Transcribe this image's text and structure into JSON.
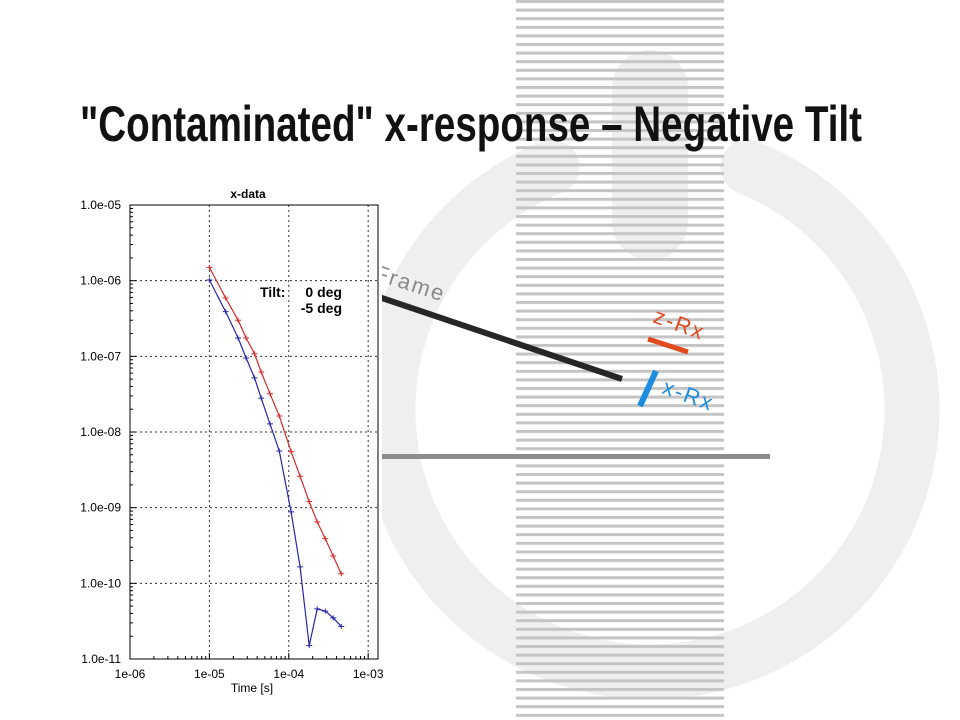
{
  "slide": {
    "title": "\"Contaminated\" x-response – Negative Tilt",
    "background_color": "#ffffff"
  },
  "watermark": {
    "color": "#efefef"
  },
  "stripes": {
    "color": "#c4c4c4"
  },
  "diagram": {
    "frame_label": "Frame",
    "z_receiver_label": "z-Rx",
    "x_receiver_label": "x-Rx",
    "colors": {
      "ground": "#8c8c8c",
      "frame": "#262626",
      "frame_label": "#8a8a8a",
      "z_receiver": "#e2491d",
      "x_receiver": "#1c8ce0"
    }
  },
  "chart_data": {
    "type": "line",
    "title": "x-data",
    "xlabel": "Time [s]",
    "xscale": "log",
    "yscale": "log",
    "xlim": [
      1e-06,
      0.00133
    ],
    "ylim": [
      1e-11,
      1e-05
    ],
    "xticks": [
      1e-06,
      1e-05,
      0.0001,
      0.001
    ],
    "xtick_labels": [
      "1e-06",
      "1e-05",
      "1e-04",
      "1e-03"
    ],
    "yticks": [
      1e-05,
      1e-06,
      1e-07,
      1e-08,
      1e-09,
      1e-10,
      1e-11
    ],
    "ytick_labels": [
      "1.0e-05",
      "1.0e-06",
      "1.0e-07",
      "1.0e-08",
      "1.0e-09",
      "1.0e-10",
      "1.0e-11"
    ],
    "grid": true,
    "legend": {
      "title": "Tilt:",
      "position": "top-right"
    },
    "x": [
      1e-05,
      1.6e-05,
      2.3e-05,
      2.9e-05,
      3.7e-05,
      4.5e-05,
      5.8e-05,
      7.6e-05,
      0.000107,
      0.000139,
      0.000181,
      0.000228,
      0.000288,
      0.000363,
      0.000458
    ],
    "series": [
      {
        "name": "0 deg",
        "color": "#d42a2a",
        "values": [
          1.5e-06,
          5.9e-07,
          3e-07,
          1.75e-07,
          1.08e-07,
          6.2e-08,
          3.2e-08,
          1.63e-08,
          5.5e-09,
          2.6e-09,
          1.2e-09,
          6.5e-10,
          3.9e-10,
          2.3e-10,
          1.34e-10
        ]
      },
      {
        "name": "-5 deg",
        "color": "#2626aa",
        "values": [
          1.02e-06,
          3.9e-07,
          1.75e-07,
          9.5e-08,
          5.2e-08,
          2.8e-08,
          1.28e-08,
          5.6e-09,
          8.8e-10,
          1.65e-10,
          1.5e-11,
          4.6e-11,
          4.3e-11,
          3.5e-11,
          2.7e-11
        ]
      }
    ]
  }
}
